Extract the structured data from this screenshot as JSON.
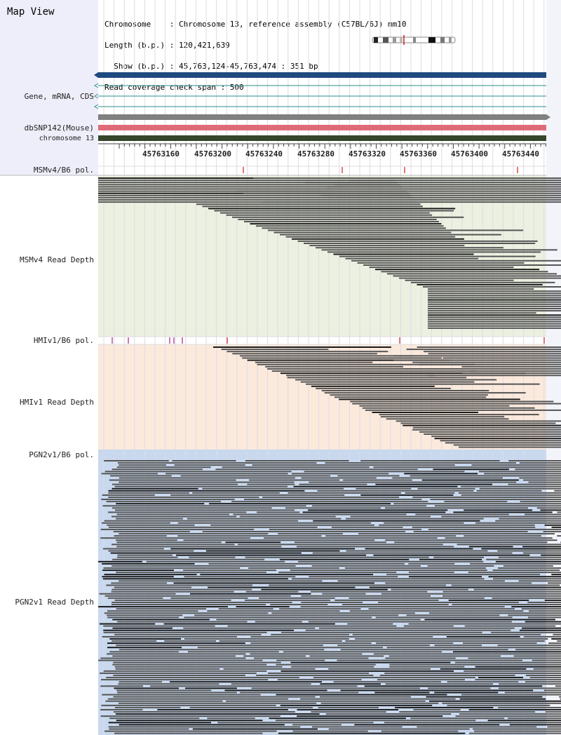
{
  "app": {
    "title": "Map View"
  },
  "header": {
    "lines": [
      "Chromosome    : Chromosome 13, reference assembly (C57BL/6J) mm10",
      "Length (b.p.) : 120,421,639",
      "  Show (b.p.) : 45,763,124-45,763,474 : 351 bp",
      "Read coverage check span : 500"
    ]
  },
  "tracks": {
    "gene": "Gene, mRNA, CDS",
    "dbsnp": "dbSNP142(Mouse)",
    "chrom": "chromosome 13"
  },
  "ruler": {
    "ticks": [
      "45763160",
      "45763200",
      "45763240",
      "45763280",
      "45763320",
      "45763360",
      "45763400",
      "45763440"
    ]
  },
  "samples": [
    {
      "pol_label": "MSMv4/B6 pol.",
      "depth_label": "MSMv4 Read Depth",
      "bg": "#ebf0e0"
    },
    {
      "pol_label": "HMIv1/B6 pol.",
      "depth_label": "HMIv1 Read Depth",
      "bg": "#fbe9dc"
    },
    {
      "pol_label": "PGN2v1/B6 pol.",
      "depth_label": "PGN2v1 Read Depth",
      "bg": "#c8d8ee"
    }
  ],
  "colors": {
    "gene_bar": "#1f4a80",
    "transcript_line": "#2a8f8a",
    "snp_bar": "#808080",
    "pink_bar": "#e06b78",
    "chrom_bar": "#35462a",
    "pol_mark": "#cc2222",
    "read": "#555555",
    "read_dark": "#1a1a1a"
  }
}
